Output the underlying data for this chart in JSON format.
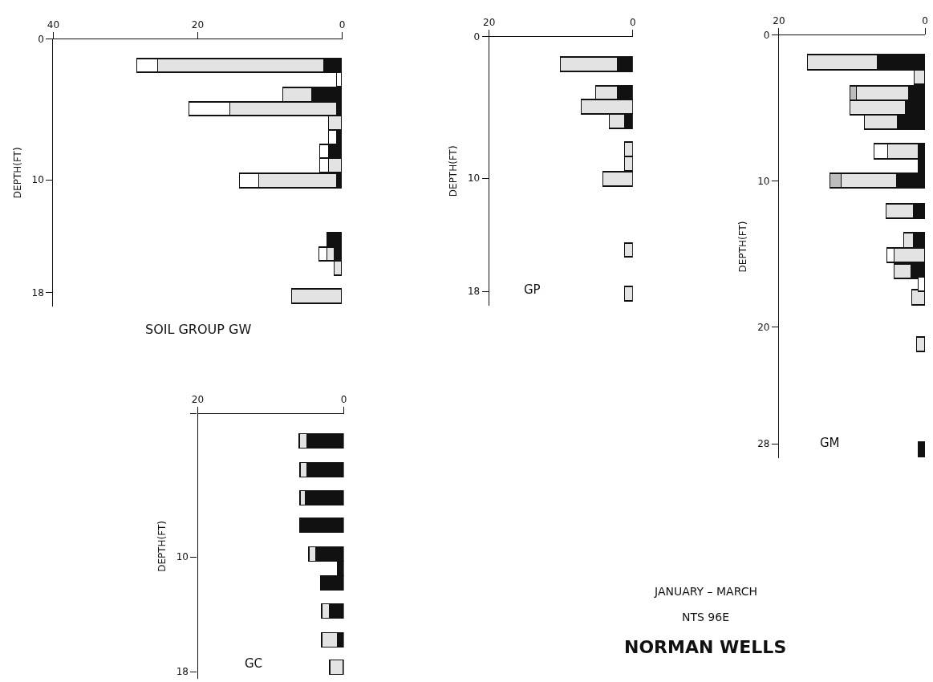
{
  "chart_data": [
    {
      "type": "bar",
      "orientation": "horizontal",
      "stacked": true,
      "title": "SOIL GROUP GW",
      "ylabel": "DEPTH(FT)",
      "x": [
        1.9,
        2.9,
        4.0,
        5.0,
        6.0,
        7.0,
        8.0,
        9.0,
        10.1,
        14.3,
        15.3,
        16.3,
        18.3
      ],
      "series": [
        {
          "color": "#111111",
          "values": [
            2.5,
            null,
            4.1,
            0.7,
            null,
            0.7,
            1.8,
            null,
            0.7,
            2.0,
            1.0,
            null,
            null
          ]
        },
        {
          "color": "#e3e3e3",
          "values": [
            23,
            null,
            4.0,
            14.8,
            1.8,
            null,
            null,
            1.8,
            10.8,
            null,
            1.0,
            1.0,
            6.9
          ]
        },
        {
          "color": "#ffffff",
          "values": [
            2.8,
            0.7,
            null,
            5.6,
            null,
            1.1,
            1.2,
            1.2,
            2.6,
            null,
            1.1,
            null,
            null
          ]
        }
      ],
      "xlim": [
        40,
        0
      ],
      "xticks": [
        40,
        20,
        0
      ],
      "ylim": [
        19,
        0
      ],
      "yticks": [
        0,
        10,
        18
      ]
    },
    {
      "type": "bar",
      "orientation": "horizontal",
      "stacked": true,
      "title": "GP",
      "ylabel": "DEPTH(FT)",
      "x": [
        2.0,
        4.0,
        5.0,
        6.0,
        8.0,
        9.0,
        10.1,
        15.1,
        18.2
      ],
      "series": [
        {
          "color": "#111111",
          "values": [
            2.1,
            2.1,
            null,
            1.1,
            null,
            null,
            null,
            null,
            null
          ]
        },
        {
          "color": "#e3e3e3",
          "values": [
            8.0,
            3.1,
            7.2,
            2.1,
            1.1,
            1.1,
            4.1,
            1.1,
            1.1
          ]
        }
      ],
      "xlim": [
        20,
        0
      ],
      "xticks": [
        20,
        0
      ],
      "ylim": [
        19,
        0
      ],
      "yticks": [
        0,
        10,
        18
      ]
    },
    {
      "type": "bar",
      "orientation": "horizontal",
      "stacked": true,
      "title": "GM",
      "ylabel": "DEPTH(FT)",
      "x": [
        1.9,
        2.9,
        4.0,
        5.0,
        6.0,
        8.0,
        9.0,
        10.0,
        12.1,
        14.1,
        15.1,
        16.2,
        17.1,
        18.0,
        21.2,
        28.4
      ],
      "series": [
        {
          "color": "#111111",
          "values": [
            6.5,
            null,
            2.2,
            2.7,
            3.7,
            0.9,
            0.9,
            3.9,
            1.5,
            1.5,
            null,
            1.9,
            null,
            null,
            null,
            0.9
          ]
        },
        {
          "color": "#e3e3e3",
          "values": [
            9.6,
            1.4,
            7.2,
            7.5,
            4.5,
            4.2,
            null,
            7.5,
            3.8,
            1.4,
            4.2,
            2.3,
            null,
            1.8,
            1.1,
            null
          ]
        },
        {
          "color": "#ffffff",
          "values": [
            null,
            null,
            null,
            null,
            null,
            1.8,
            null,
            null,
            null,
            null,
            1.0,
            null,
            0.9,
            null,
            null,
            null
          ]
        },
        {
          "color": "#bdbdbd",
          "values": [
            null,
            null,
            0.8,
            null,
            null,
            null,
            null,
            1.6,
            null,
            null,
            null,
            null,
            null,
            null,
            null,
            null
          ]
        }
      ],
      "xlim": [
        20,
        0
      ],
      "xticks": [
        20,
        0
      ],
      "ylim": [
        29,
        0
      ],
      "yticks": [
        0,
        10,
        20,
        28
      ]
    },
    {
      "type": "bar",
      "orientation": "horizontal",
      "stacked": true,
      "title": "GC",
      "ylabel": "DEPTH(FT)",
      "x": [
        1.9,
        3.9,
        5.9,
        7.8,
        9.8,
        10.8,
        11.8,
        13.8,
        15.8,
        17.7
      ],
      "series": [
        {
          "color": "#111111",
          "values": [
            5.0,
            4.9,
            5.2,
            5.9,
            3.8,
            0.8,
            3.1,
            1.9,
            0.8,
            null
          ]
        },
        {
          "color": "#e3e3e3",
          "values": [
            1.1,
            1.0,
            0.7,
            null,
            0.9,
            null,
            null,
            1.1,
            2.2,
            1.9
          ]
        }
      ],
      "xlim": [
        20,
        0
      ],
      "xticks": [
        20,
        0
      ],
      "ylim": [
        18.5,
        0
      ],
      "yticks": [
        {
          "value": 0,
          "label": null
        },
        10,
        18
      ]
    },
    {
      "type": "other",
      "title": "NORMAN WELLS",
      "annotations": [
        "JANUARY – MARCH",
        "NTS 96E"
      ]
    }
  ]
}
